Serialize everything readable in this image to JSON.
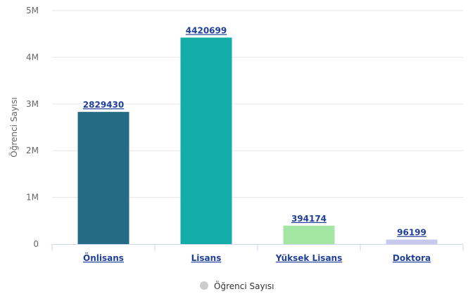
{
  "chart_data": {
    "type": "bar",
    "categories": [
      "Önlisans",
      "Lisans",
      "Yüksek Lisans",
      "Doktora"
    ],
    "values": [
      2829430,
      4420699,
      394174,
      96199
    ],
    "colors": [
      "#256b86",
      "#12ada8",
      "#a4e6a4",
      "#c6c8ee"
    ],
    "ylabel": "Öğrenci Sayısı",
    "ylim": [
      0,
      5000000
    ],
    "yticks": [
      0,
      1000000,
      2000000,
      3000000,
      4000000,
      5000000
    ],
    "ytick_labels": [
      "0",
      "1M",
      "2M",
      "3M",
      "4M",
      "5M"
    ],
    "grid": true,
    "legend": {
      "label": "Öğrenci Sayısı",
      "position": "bottom-center",
      "color": "#cccccc"
    }
  }
}
